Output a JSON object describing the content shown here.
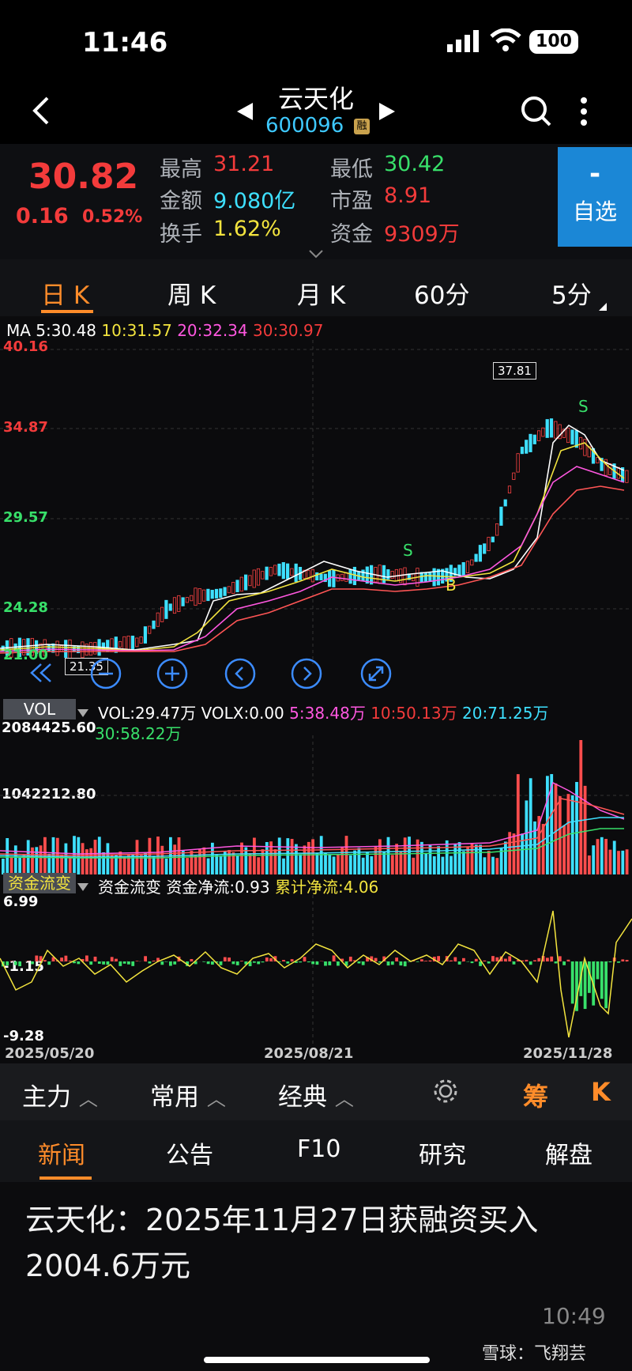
{
  "status": {
    "time": "11:46",
    "battery": "100"
  },
  "header": {
    "title": "云天化",
    "code": "600096",
    "rong": "融",
    "back_icon": "chevron-left-icon",
    "search_icon": "search-icon",
    "more_icon": "more-vertical-icon"
  },
  "quote": {
    "price": "30.82",
    "change": "0.16",
    "pct": "0.52%",
    "high_label": "最高",
    "high": "31.21",
    "low_label": "最低",
    "low": "30.42",
    "amount_label": "金额",
    "amount": "9.080亿",
    "pe_label": "市盈",
    "pe": "8.91",
    "turnover_label": "换手",
    "turnover": "1.62%",
    "fund_label": "资金",
    "fund": "9309万",
    "watch_minus": "-",
    "watch_label": "自选"
  },
  "tabs": [
    "日 K",
    "周 K",
    "月 K",
    "60分",
    "5分"
  ],
  "ma": {
    "label": "MA",
    "ma5": "5:30.48",
    "ma10": "10:31.57",
    "ma20": "20:32.34",
    "ma30": "30:30.97"
  },
  "price_axis": [
    "40.16",
    "34.87",
    "29.57",
    "24.28",
    "21.00"
  ],
  "annotations": {
    "max": "37.81",
    "min": "21.35",
    "s1": "S",
    "s2": "S",
    "b1": "B"
  },
  "vol": {
    "btn": "VOL",
    "vol": "VOL:29.47万",
    "volx": "VOLX:0.00",
    "v5": "5:38.48万",
    "v10": "10:50.13万",
    "v20": "20:71.25万",
    "v30": "30:58.22万",
    "axis1": "2084425.60",
    "axis2": "1042212.80"
  },
  "fund": {
    "btn": "资金流变",
    "name": "资金流变",
    "net_label": "资金净流:0.93",
    "cum_label": "累计净流:4.06",
    "axis_top": "6.99",
    "axis_mid": "-1.15",
    "axis_bot": "-9.28"
  },
  "dates": [
    "2025/05/20",
    "2025/08/21",
    "2025/11/28"
  ],
  "toolbar": {
    "main": "主力",
    "common": "常用",
    "classic": "经典",
    "chip": "筹",
    "k": "K"
  },
  "news_tabs": [
    "新闻",
    "公告",
    "F10",
    "研究",
    "解盘"
  ],
  "article": {
    "headline": "云天化：2025年11月27日获融资买入2004.6万元",
    "time": "10:49",
    "source": "雪球：飞翔芸"
  }
}
